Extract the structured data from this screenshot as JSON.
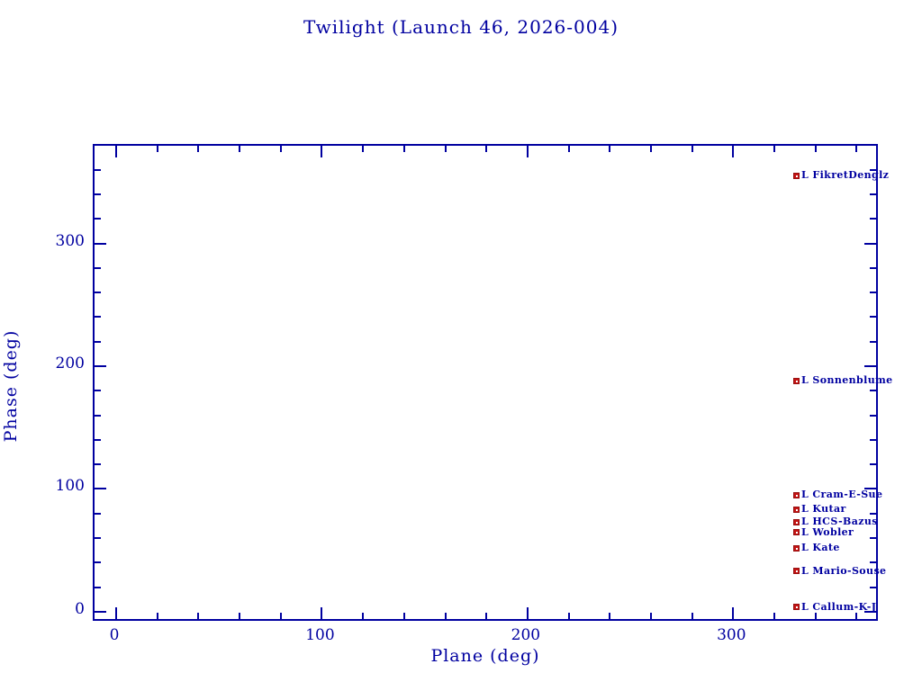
{
  "chart_data": {
    "type": "scatter",
    "title": "Twilight (Launch 46, 2026-004)",
    "xlabel": "Plane (deg)",
    "ylabel": "Phase (deg)",
    "xlim": [
      -10.5,
      371.2
    ],
    "ylim": [
      -8.8,
      379.5
    ],
    "x_major_ticks": [
      0,
      100,
      200,
      300
    ],
    "y_major_ticks": [
      0,
      100,
      200,
      300
    ],
    "minor_tick_step": 20,
    "grid": false,
    "legend_position": "none",
    "axis_color": "#0000a0",
    "text_color": "#0000a0",
    "marker": {
      "shape": "filled-square",
      "color": "#c41414",
      "size": 7
    },
    "points": [
      {
        "label": "L FikretDenglz",
        "x": 330.5,
        "y": 355
      },
      {
        "label": "L Sonnenblume",
        "x": 330.5,
        "y": 188
      },
      {
        "label": "L Cram-E-Sue",
        "x": 330.5,
        "y": 95
      },
      {
        "label": "L Kutar",
        "x": 330.5,
        "y": 83.5
      },
      {
        "label": "L HCS-Bazus",
        "x": 330.5,
        "y": 73
      },
      {
        "label": "L Wobler",
        "x": 330.5,
        "y": 64.5
      },
      {
        "label": "L Kate",
        "x": 330.5,
        "y": 52
      },
      {
        "label": "L Mario-Souse",
        "x": 330.5,
        "y": 33
      },
      {
        "label": "L Callum-K-J",
        "x": 330.5,
        "y": 4
      }
    ]
  }
}
